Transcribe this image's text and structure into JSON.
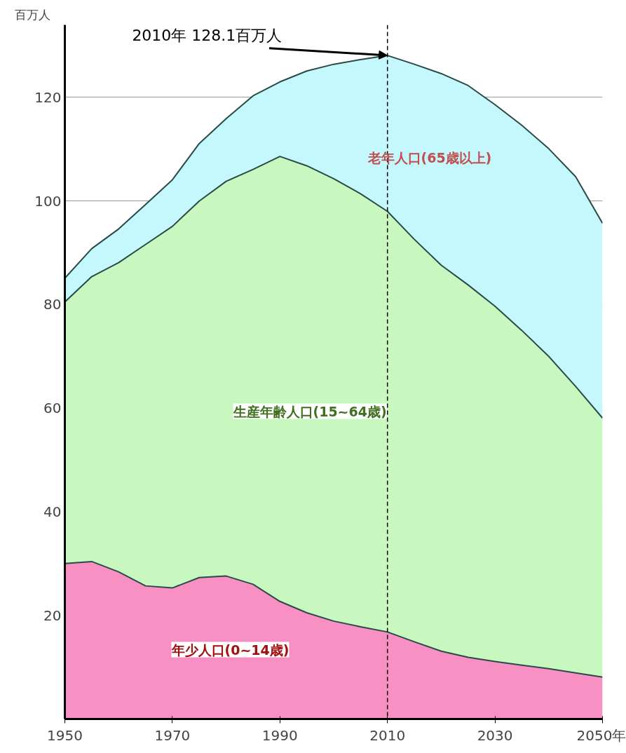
{
  "chart_data": {
    "type": "area",
    "stacked": true,
    "x": [
      1950,
      1955,
      1960,
      1965,
      1970,
      1975,
      1980,
      1985,
      1990,
      1995,
      2000,
      2005,
      2010,
      2015,
      2020,
      2025,
      2030,
      2035,
      2040,
      2045,
      2050
    ],
    "series": [
      {
        "name": "年少人口(0~14歳)",
        "color": "#f990c4",
        "values": [
          30.0,
          30.4,
          28.4,
          25.7,
          25.3,
          27.3,
          27.6,
          26.0,
          22.7,
          20.5,
          18.9,
          17.8,
          16.8,
          14.9,
          13.1,
          11.9,
          11.1,
          10.4,
          9.7,
          8.9,
          8.1
        ]
      },
      {
        "name": "生産年齢人口(15~64歳)",
        "color": "#c8f8c0",
        "values": [
          50.5,
          55.0,
          59.7,
          65.9,
          69.8,
          72.7,
          76.2,
          80.1,
          85.9,
          86.3,
          85.4,
          83.6,
          81.2,
          77.7,
          74.5,
          71.9,
          68.6,
          64.6,
          60.3,
          55.3,
          50.0
        ]
      },
      {
        "name": "老年人口(65歳以上)",
        "color": "#c4f8fc",
        "values": [
          4.6,
          5.4,
          6.5,
          7.7,
          9.0,
          11.1,
          12.1,
          14.2,
          14.4,
          18.3,
          22.1,
          25.9,
          30.1,
          33.8,
          37.0,
          38.5,
          38.9,
          39.6,
          40.1,
          40.5,
          37.6
        ]
      }
    ],
    "xlim": [
      1950,
      2050
    ],
    "ylim": [
      0,
      134
    ],
    "xticks": [
      1950,
      1970,
      1990,
      2010,
      2030,
      {
        "value": 2050,
        "label": "2050年"
      }
    ],
    "yticks": [
      20,
      40,
      60,
      80,
      100,
      120
    ],
    "ylabel": "百万人",
    "grid": "y",
    "legend": false,
    "ref_lines": [
      {
        "axis": "x",
        "value": 2010,
        "label": null,
        "line_style": "dashed",
        "color": "#000000"
      }
    ],
    "annotations": [
      {
        "text": "2010年 128.1百万人",
        "x": 2010,
        "y": 128.1
      }
    ]
  }
}
